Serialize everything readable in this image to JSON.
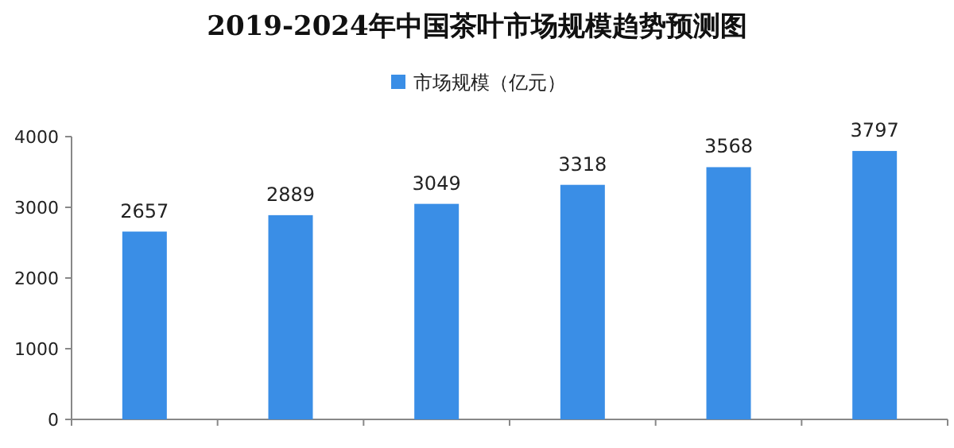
{
  "chart_data": {
    "type": "bar",
    "title": "2019-2024年中国茶叶市场规模趋势预测图",
    "categories": [
      null,
      null,
      null,
      null,
      null,
      null
    ],
    "series": [
      {
        "name": "市场规模（亿元）",
        "color": "#3a8ee6",
        "values": [
          2657,
          2889,
          3049,
          3318,
          3568,
          3797
        ]
      }
    ],
    "ylim": [
      0,
      4000
    ],
    "yticks": [
      0,
      1000,
      2000,
      3000,
      4000
    ],
    "data_labels": true,
    "legend": "top",
    "grid": false
  }
}
